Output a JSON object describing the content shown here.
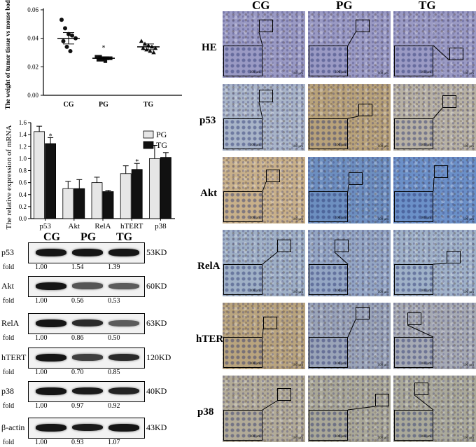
{
  "tumor_weight_chart": {
    "ylabel": "The weight of tumor tissue vs mouse body",
    "y_ticks": [
      "0.00",
      "0.02",
      "0.04",
      "0.06"
    ],
    "categories": [
      "CG",
      "PG",
      "TG"
    ],
    "star": "*",
    "chart_data": {
      "type": "scatter",
      "categories": [
        "CG",
        "PG",
        "TG"
      ],
      "ylim": [
        0,
        0.06
      ],
      "series": [
        {
          "group": "CG",
          "points": [
            0.053,
            0.047,
            0.043,
            0.042,
            0.04,
            0.038,
            0.034,
            0.031
          ],
          "mean": 0.04,
          "sem_low": 0.036,
          "sem_high": 0.044
        },
        {
          "group": "PG",
          "points": [
            0.027,
            0.027,
            0.026,
            0.026,
            0.026,
            0.025,
            0.025,
            0.024
          ],
          "mean": 0.026,
          "sem_low": 0.025,
          "sem_high": 0.027
        },
        {
          "group": "TG",
          "points": [
            0.038,
            0.036,
            0.035,
            0.034,
            0.033,
            0.033,
            0.032,
            0.031,
            0.03
          ],
          "mean": 0.034,
          "sem_low": 0.032,
          "sem_high": 0.036
        }
      ],
      "colors": {
        "CG": "#111111",
        "PG": "#111111",
        "TG": "#111111"
      }
    }
  },
  "mrna_chart": {
    "ylabel": "The relative expression of mRNA",
    "y_ticks": [
      "0.0",
      "0.2",
      "0.4",
      "0.6",
      "0.8",
      "1.0",
      "1.2",
      "1.4",
      "1.6"
    ],
    "categories": [
      "p53",
      "Akt",
      "RelA",
      "hTERT",
      "p38"
    ],
    "legend": [
      "PG",
      "TG"
    ],
    "star": "*",
    "chart_data": {
      "type": "bar",
      "categories": [
        "p53",
        "Akt",
        "RelA",
        "hTERT",
        "p38"
      ],
      "ylim": [
        0,
        1.6
      ],
      "series": [
        {
          "name": "PG",
          "values": [
            1.45,
            0.5,
            0.6,
            0.75,
            1.0
          ],
          "errors": [
            0.09,
            0.12,
            0.09,
            0.13,
            0.22
          ],
          "color": "#e6e6e6"
        },
        {
          "name": "TG",
          "values": [
            1.25,
            0.5,
            0.45,
            0.82,
            1.02
          ],
          "errors": [
            0.1,
            0.15,
            0.02,
            0.1,
            0.08
          ],
          "color": "#111111"
        }
      ],
      "significance": {
        "p53": "TG",
        "hTERT": "TG"
      },
      "grid": false,
      "legend_position": "top-right"
    }
  },
  "western_blot": {
    "columns": [
      "CG",
      "PG",
      "TG"
    ],
    "fold_label": "fold",
    "rows": [
      {
        "protein": "p53",
        "kd": "53KD",
        "folds": [
          "1.00",
          "1.54",
          "1.39"
        ],
        "intensity": [
          1.0,
          1.0,
          1.0
        ]
      },
      {
        "protein": "Akt",
        "kd": "60KD",
        "folds": [
          "1.00",
          "0.56",
          "0.53"
        ],
        "intensity": [
          1.0,
          0.55,
          0.5
        ]
      },
      {
        "protein": "RelA",
        "kd": "63KD",
        "folds": [
          "1.00",
          "0.86",
          "0.50"
        ],
        "intensity": [
          1.0,
          0.85,
          0.5
        ]
      },
      {
        "protein": "hTERT",
        "kd": "120KD",
        "folds": [
          "1.00",
          "0.70",
          "0.85"
        ],
        "intensity": [
          1.0,
          0.7,
          0.85
        ]
      },
      {
        "protein": "p38",
        "kd": "40KD",
        "folds": [
          "1.00",
          "0.97",
          "0.92"
        ],
        "intensity": [
          1.0,
          0.95,
          0.9
        ]
      },
      {
        "protein": "β-actin",
        "kd": "43KD",
        "folds": [
          "1.00",
          "0.93",
          "1.07"
        ],
        "intensity": [
          1.0,
          0.95,
          1.0
        ]
      }
    ]
  },
  "ihc": {
    "columns": [
      "CG",
      "PG",
      "TG"
    ],
    "rows": [
      "HE",
      "p53",
      "Akt",
      "RelA",
      "hTERT",
      "p38"
    ],
    "scale_label": "100 μm",
    "colors": {
      "HE": "#9a9ac4",
      "p53": [
        "#a8b4c8",
        "#b8a27a",
        "#b7b1a4"
      ],
      "Akt": [
        "#c8b08a",
        "#6d8fc0",
        "#6b90c8"
      ],
      "RelA": [
        "#9fb0c6",
        "#94a6c4",
        "#9fb1c8"
      ],
      "hTERT": [
        "#b9a47e",
        "#9aa4b8",
        "#a6aab4"
      ],
      "p38": [
        "#b2ab98",
        "#aaa898",
        "#aaa99a"
      ]
    }
  }
}
